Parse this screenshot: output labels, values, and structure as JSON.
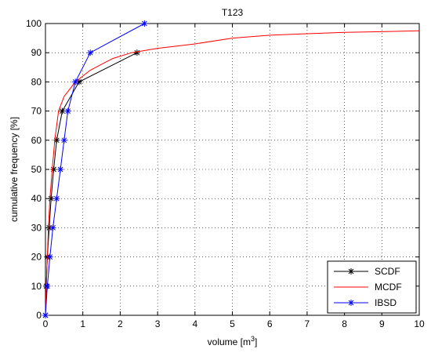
{
  "chart_data": {
    "type": "line",
    "title": "T123",
    "xlabel": "volume [m",
    "xlabel_sup": "3",
    "xlabel_end": "]",
    "ylabel": "cumulative frequency [%]",
    "xlim": [
      0,
      10
    ],
    "ylim": [
      0,
      100
    ],
    "xticks": [
      0,
      1,
      2,
      3,
      4,
      5,
      6,
      7,
      8,
      9,
      10
    ],
    "yticks": [
      0,
      10,
      20,
      30,
      40,
      50,
      60,
      70,
      80,
      90,
      100
    ],
    "grid": true,
    "legend_position": "bottom-right",
    "series": [
      {
        "name": "SCDF",
        "color": "#000000",
        "marker": "asterisk",
        "x": [
          0.0,
          0.02,
          0.05,
          0.1,
          0.15,
          0.22,
          0.3,
          0.45,
          0.9,
          2.45
        ],
        "y": [
          0,
          10,
          20,
          30,
          40,
          50,
          60,
          70,
          80,
          90
        ]
      },
      {
        "name": "MCDF",
        "color": "#ff0000",
        "marker": "none",
        "x": [
          0.0,
          0.02,
          0.05,
          0.08,
          0.12,
          0.18,
          0.25,
          0.35,
          0.5,
          0.8,
          1.2,
          1.8,
          2.3,
          3.0,
          4.0,
          5.0,
          6.0,
          7.0,
          8.0,
          9.0,
          10.0
        ],
        "y": [
          0,
          10,
          20,
          30,
          40,
          50,
          60,
          70,
          75,
          80,
          84,
          88,
          90,
          91.5,
          93,
          95,
          96,
          96.5,
          97,
          97.2,
          97.5
        ]
      },
      {
        "name": "IBSD",
        "color": "#0000ff",
        "marker": "asterisk",
        "x": [
          0.0,
          0.05,
          0.12,
          0.2,
          0.3,
          0.4,
          0.5,
          0.6,
          0.8,
          1.2,
          2.65
        ],
        "y": [
          0,
          10,
          20,
          30,
          40,
          50,
          60,
          70,
          80,
          90,
          100
        ]
      }
    ]
  }
}
